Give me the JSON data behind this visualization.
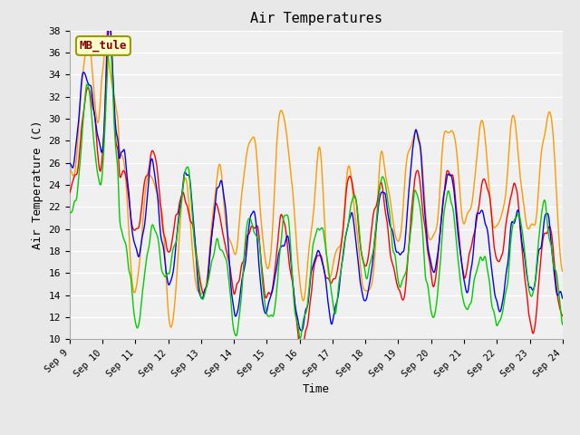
{
  "title": "Air Temperatures",
  "xlabel": "Time",
  "ylabel": "Air Temperature (C)",
  "ylim": [
    10,
    38
  ],
  "yticks": [
    10,
    12,
    14,
    16,
    18,
    20,
    22,
    24,
    26,
    28,
    30,
    32,
    34,
    36,
    38
  ],
  "annotation_text": "MB_tule",
  "annotation_facecolor": "#ffffcc",
  "annotation_edgecolor": "#999900",
  "annotation_textcolor": "#880000",
  "series_colors": {
    "AirT": "#ff0000",
    "li75_t": "#0000ff",
    "li77_temp": "#00cc00",
    "Tsonic": "#ff9900"
  },
  "series_linewidth": 1.0,
  "background_color": "#e8e8e8",
  "plot_bg_color": "#f0f0f0",
  "grid_color": "#ffffff",
  "n_days": 15,
  "xtick_labels": [
    "Sep 9",
    "Sep 10",
    "Sep 11",
    "Sep 12",
    "Sep 13",
    "Sep 14",
    "Sep 15",
    "Sep 16",
    "Sep 17",
    "Sep 18",
    "Sep 19",
    "Sep 20",
    "Sep 21",
    "Sep 22",
    "Sep 23",
    "Sep 24"
  ],
  "font_family": "monospace",
  "figsize": [
    6.4,
    4.8
  ],
  "dpi": 100
}
